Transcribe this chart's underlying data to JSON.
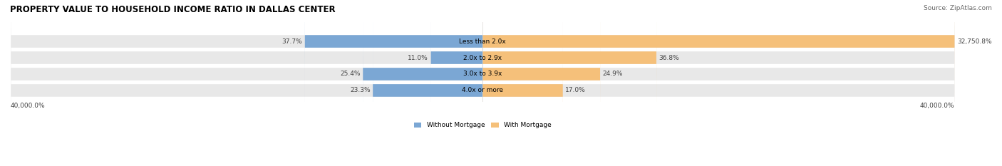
{
  "title": "PROPERTY VALUE TO HOUSEHOLD INCOME RATIO IN DALLAS CENTER",
  "source": "Source: ZipAtlas.com",
  "categories": [
    "Less than 2.0x",
    "2.0x to 2.9x",
    "3.0x to 3.9x",
    "4.0x or more"
  ],
  "without_mortgage": [
    37.7,
    11.0,
    25.4,
    23.3
  ],
  "with_mortgage": [
    32750.8,
    36.8,
    24.9,
    17.0
  ],
  "without_mortgage_pct_labels": [
    "37.7%",
    "11.0%",
    "25.4%",
    "23.3%"
  ],
  "with_mortgage_pct_labels": [
    "32,750.8%",
    "36.8%",
    "24.9%",
    "17.0%"
  ],
  "color_without": "#7ba7d4",
  "color_with": "#f5c07a",
  "background_bar": "#e8e8e8",
  "x_label_left": "40,000.0%",
  "x_label_right": "40,000.0%",
  "legend_without": "Without Mortgage",
  "legend_with": "With Mortgage",
  "max_value": 40000.0,
  "figwidth": 14.06,
  "figheight": 2.33
}
